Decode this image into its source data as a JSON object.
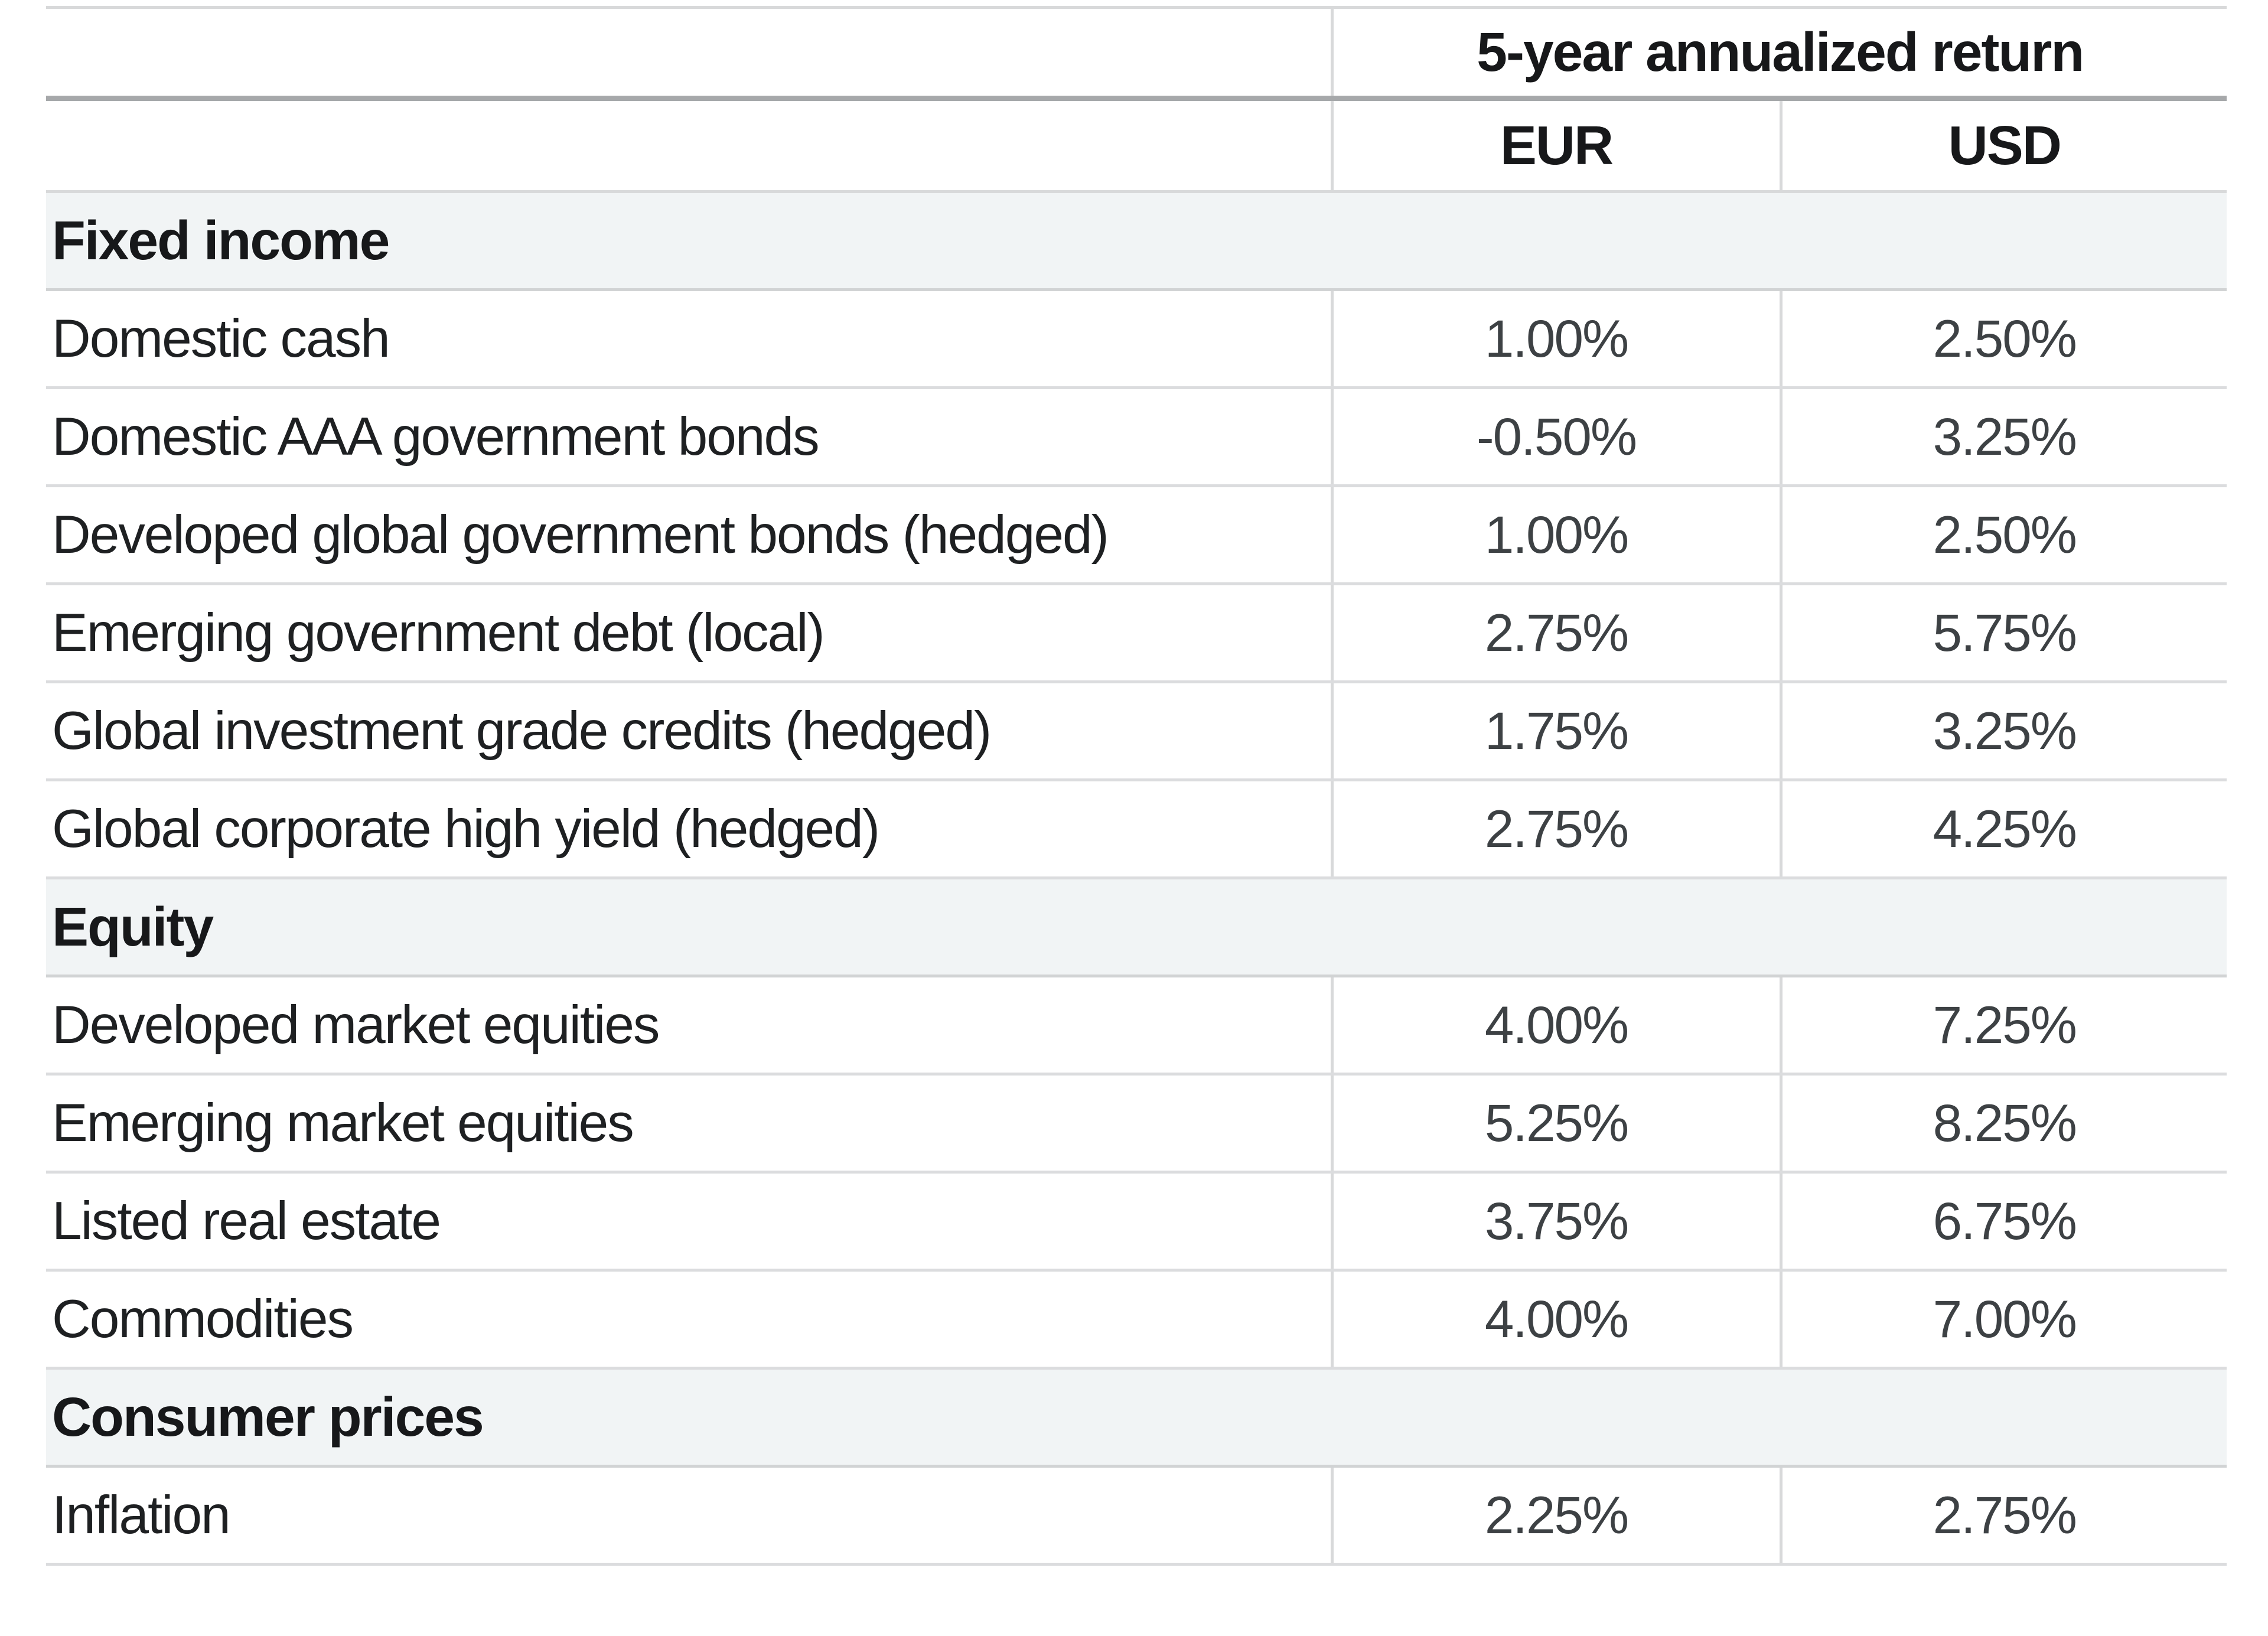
{
  "chart_data": {
    "type": "table",
    "title": "5-year annualized return",
    "columns": [
      "EUR",
      "USD"
    ],
    "sections": [
      {
        "header": "Fixed income",
        "rows": [
          [
            "Domestic cash",
            "1.00%",
            "2.50%"
          ],
          [
            "Domestic AAA government bonds",
            "-0.50%",
            "3.25%"
          ],
          [
            "Developed global government bonds (hedged)",
            "1.00%",
            "2.50%"
          ],
          [
            "Emerging government debt (local)",
            "2.75%",
            "5.75%"
          ],
          [
            "Global investment grade credits (hedged)",
            "1.75%",
            "3.25%"
          ],
          [
            "Global corporate high yield (hedged)",
            "2.75%",
            "4.25%"
          ]
        ]
      },
      {
        "header": "Equity",
        "rows": [
          [
            "Developed market equities",
            "4.00%",
            "7.25%"
          ],
          [
            "Emerging market equities",
            "5.25%",
            "8.25%"
          ],
          [
            "Listed real estate",
            "3.75%",
            "6.75%"
          ],
          [
            "Commodities",
            "4.00%",
            "7.00%"
          ]
        ]
      },
      {
        "header": "Consumer prices",
        "rows": [
          [
            "Inflation",
            "2.25%",
            "2.75%"
          ]
        ]
      }
    ],
    "layout": {
      "legend": "none",
      "grid": "horizontal-rules",
      "first_column_width_pct": 59,
      "value_alignment": "center"
    },
    "colors": {
      "section_row_bg": "#f1f4f5",
      "rule_light": "#d8d9da",
      "rule_dark": "#a6a8aa",
      "label_text": "#1e2022",
      "value_text": "#3d4144"
    }
  }
}
